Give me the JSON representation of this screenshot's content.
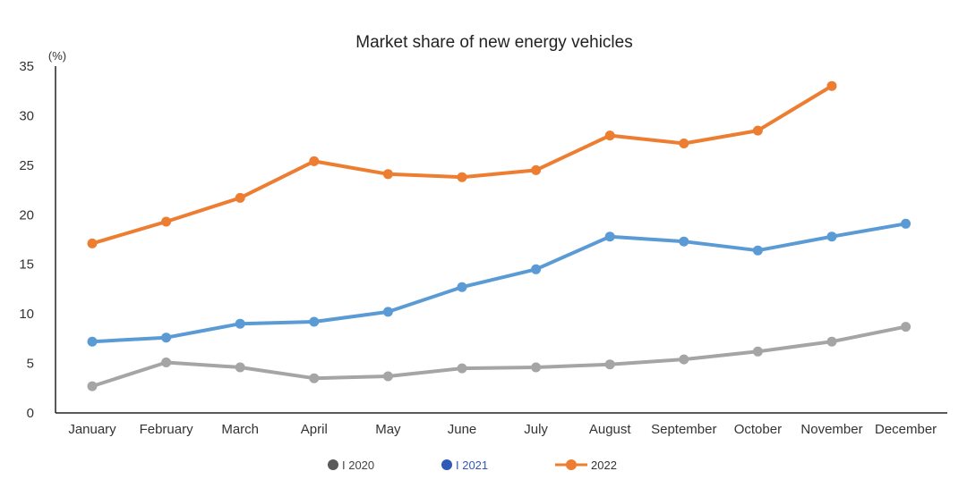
{
  "chart_data": {
    "type": "line",
    "title": "Market share of new energy vehicles",
    "ylabel": "(%)",
    "xlabel": "",
    "ylim": [
      0,
      35
    ],
    "yticks": [
      0,
      5,
      10,
      15,
      20,
      25,
      30,
      35
    ],
    "grid": false,
    "legend_position": "bottom",
    "categories": [
      "January",
      "February",
      "March",
      "April",
      "May",
      "June",
      "July",
      "August",
      "September",
      "October",
      "November",
      "December"
    ],
    "series": [
      {
        "name": "2020",
        "legend_label": "I 2020",
        "color": "#a5a5a5",
        "legend_color": "#595959",
        "legend_text_color": "#444444",
        "values": [
          2.7,
          5.1,
          4.6,
          3.5,
          3.7,
          4.5,
          4.6,
          4.9,
          5.4,
          6.2,
          7.2,
          8.7
        ]
      },
      {
        "name": "2021",
        "legend_label": "I 2021",
        "color": "#5b9bd5",
        "legend_color": "#2f5ab8",
        "legend_text_color": "#2f5ab8",
        "values": [
          7.2,
          7.6,
          9.0,
          9.2,
          10.2,
          12.7,
          14.5,
          17.8,
          17.3,
          16.4,
          17.8,
          19.1
        ]
      },
      {
        "name": "2022",
        "legend_label": "2022",
        "color": "#ed7d31",
        "legend_color": "#ed7d31",
        "legend_text_color": "#333333",
        "values": [
          17.1,
          19.3,
          21.7,
          25.4,
          24.1,
          23.8,
          24.5,
          28.0,
          27.2,
          28.5,
          33.0,
          null
        ]
      }
    ]
  }
}
